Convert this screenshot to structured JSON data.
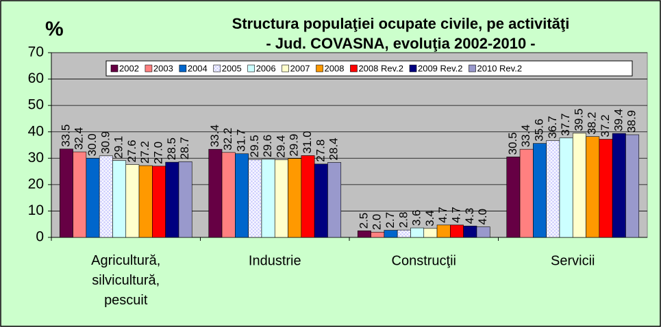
{
  "chart_data": {
    "type": "bar",
    "title": "Structura populaţiei ocupate civile, pe activităţi",
    "subtitle": "- Jud. COVASNA, evoluţia 2002-2010 -",
    "y_label": "%",
    "categories": [
      "Agricultură, silvicultură, pescuit",
      "Industrie",
      "Construcţii",
      "Servicii"
    ],
    "series": [
      {
        "name": "2002",
        "color": "#660044",
        "values": [
          33.5,
          33.4,
          2.5,
          30.5
        ],
        "value_labels": [
          "33.5",
          "33.4",
          "2.5",
          "30.5"
        ]
      },
      {
        "name": "2003",
        "color": "#FF8080",
        "values": [
          32.4,
          32.2,
          2.0,
          33.4
        ],
        "value_labels": [
          "32.4",
          "32.2",
          "2.0",
          "33.4"
        ]
      },
      {
        "name": "2004",
        "color": "#0066CC",
        "values": [
          30.0,
          31.7,
          2.7,
          35.6
        ],
        "value_labels": [
          "30.0",
          "31.7",
          "2.7",
          "35.6"
        ]
      },
      {
        "name": "2005",
        "color": "#CCCCFF",
        "hatch": true,
        "values": [
          30.9,
          29.5,
          2.8,
          36.7
        ],
        "value_labels": [
          "30.9",
          "29.5",
          "2.8",
          "36.7"
        ]
      },
      {
        "name": "2006",
        "color": "#CCFFFF",
        "values": [
          29.1,
          29.6,
          3.6,
          37.7
        ],
        "value_labels": [
          "29.1",
          "29.6",
          "3.6",
          "37.7"
        ]
      },
      {
        "name": "2007",
        "color": "#FFFFCC",
        "values": [
          27.6,
          29.4,
          3.4,
          39.5
        ],
        "value_labels": [
          "27.6",
          "29.4",
          "3.4",
          "39.5"
        ]
      },
      {
        "name": "2008",
        "color": "#FF9900",
        "values": [
          27.2,
          29.9,
          4.7,
          38.2
        ],
        "value_labels": [
          "27.2",
          "29.9",
          "4.7",
          "38.2"
        ]
      },
      {
        "name": "2008 Rev.2",
        "color": "#FF0000",
        "values": [
          27.0,
          31.0,
          4.7,
          37.2
        ],
        "value_labels": [
          "27.0",
          "31.0",
          "4.7",
          "37.2"
        ]
      },
      {
        "name": "2009 Rev.2",
        "color": "#000080",
        "values": [
          28.5,
          27.8,
          4.3,
          39.4
        ],
        "value_labels": [
          "28.5",
          "27.8",
          "4.3",
          "39.4"
        ]
      },
      {
        "name": "2010 Rev.2",
        "color": "#9999CC",
        "values": [
          28.7,
          28.4,
          4.0,
          38.9
        ],
        "value_labels": [
          "28.7",
          "28.4",
          "4.0",
          "38.9"
        ]
      }
    ],
    "ylim": [
      0,
      70
    ],
    "yticks": [
      0,
      10,
      20,
      30,
      40,
      50,
      60,
      70
    ],
    "grid": true,
    "legend": "top"
  }
}
